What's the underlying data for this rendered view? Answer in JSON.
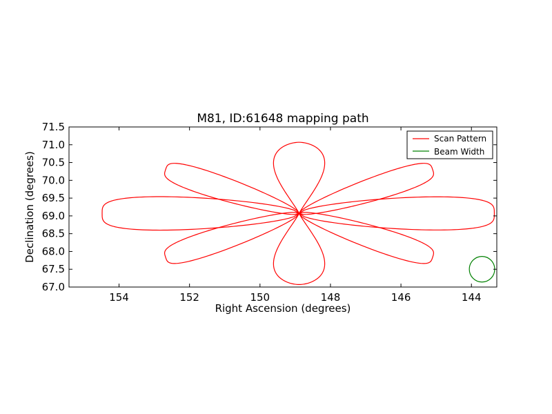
{
  "chart_data": {
    "type": "line",
    "title": "M81, ID:61648 mapping path",
    "xlabel": "Right Ascension (degrees)",
    "ylabel": "Declination (degrees)",
    "xlim": [
      155.42,
      143.28
    ],
    "ylim": [
      67.0,
      71.5
    ],
    "x_inverted": true,
    "xticks": [
      154,
      152,
      150,
      148,
      146,
      144
    ],
    "xtick_labels": [
      "154",
      "152",
      "150",
      "148",
      "146",
      "144"
    ],
    "yticks": [
      67.0,
      67.5,
      68.0,
      68.5,
      69.0,
      69.5,
      70.0,
      70.5,
      71.0,
      71.5
    ],
    "ytick_labels": [
      "67.0",
      "67.5",
      "68.0",
      "68.5",
      "69.0",
      "69.5",
      "70.0",
      "70.5",
      "71.0",
      "71.5"
    ],
    "grid": false,
    "legend_position": "top-right",
    "series": [
      {
        "name": "Scan Pattern",
        "color": "#ff0000",
        "pattern": "rose",
        "center": {
          "ra": 148.89,
          "dec": 69.07
        },
        "petal_count": 8,
        "petal_orientations_deg": [
          90,
          30,
          0,
          -30,
          -90,
          -150,
          180,
          150
        ],
        "petal_tip_points": [
          {
            "ra": 148.89,
            "dec": 71.07
          },
          {
            "ra": 145.1,
            "dec": 70.3
          },
          {
            "ra": 143.35,
            "dec": 69.07
          },
          {
            "ra": 145.1,
            "dec": 67.84
          },
          {
            "ra": 148.89,
            "dec": 67.07
          },
          {
            "ra": 152.68,
            "dec": 67.84
          },
          {
            "ra": 154.48,
            "dec": 69.07
          },
          {
            "ra": 152.68,
            "dec": 70.3
          }
        ]
      },
      {
        "name": "Beam Width",
        "color": "#008000",
        "shape": "circle",
        "center": {
          "ra": 143.7,
          "dec": 67.5
        },
        "radius_ra_deg": 0.36,
        "radius_dec_deg": 0.36
      }
    ]
  }
}
